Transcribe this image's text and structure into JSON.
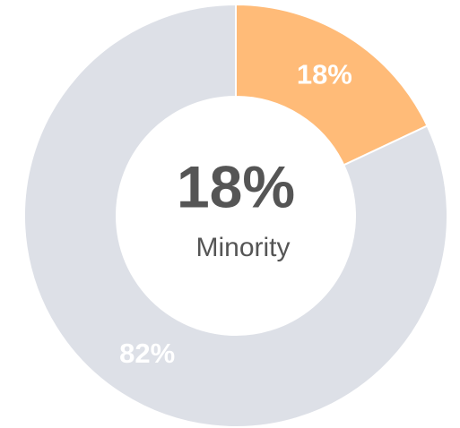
{
  "chart_data": {
    "type": "donut",
    "values": [
      18,
      82
    ],
    "value_labels": [
      "18%",
      "82%"
    ],
    "colors": [
      "#ffbb78",
      "#dde0e7"
    ],
    "center_text": "18%",
    "center_subtext": "Minority"
  }
}
